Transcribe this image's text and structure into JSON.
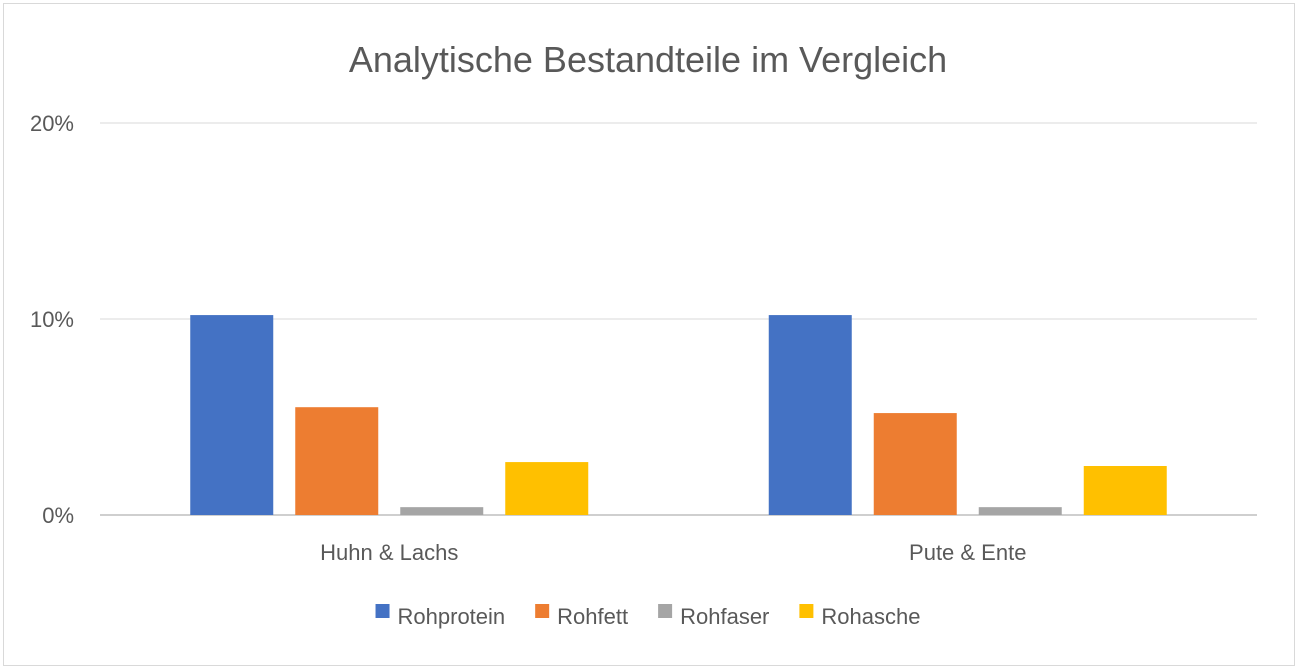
{
  "chart_data": {
    "type": "bar",
    "title": "Analytische Bestandteile im Vergleich",
    "xlabel": "",
    "ylabel": "",
    "categories": [
      "Huhn & Lachs",
      "Pute & Ente"
    ],
    "series": [
      {
        "name": "Rohprotein",
        "values": [
          10.2,
          10.2
        ],
        "color": "#4472c4"
      },
      {
        "name": "Rohfett",
        "values": [
          5.5,
          5.2
        ],
        "color": "#ed7d31"
      },
      {
        "name": "Rohfaser",
        "values": [
          0.4,
          0.4
        ],
        "color": "#a5a5a5"
      },
      {
        "name": "Rohasche",
        "values": [
          2.7,
          2.5
        ],
        "color": "#ffc000"
      }
    ],
    "ylim": [
      0,
      20
    ],
    "yticks": [
      0,
      10,
      20
    ],
    "ytick_labels": [
      "0%",
      "10%",
      "20%"
    ],
    "grid": true,
    "legend_position": "bottom"
  }
}
